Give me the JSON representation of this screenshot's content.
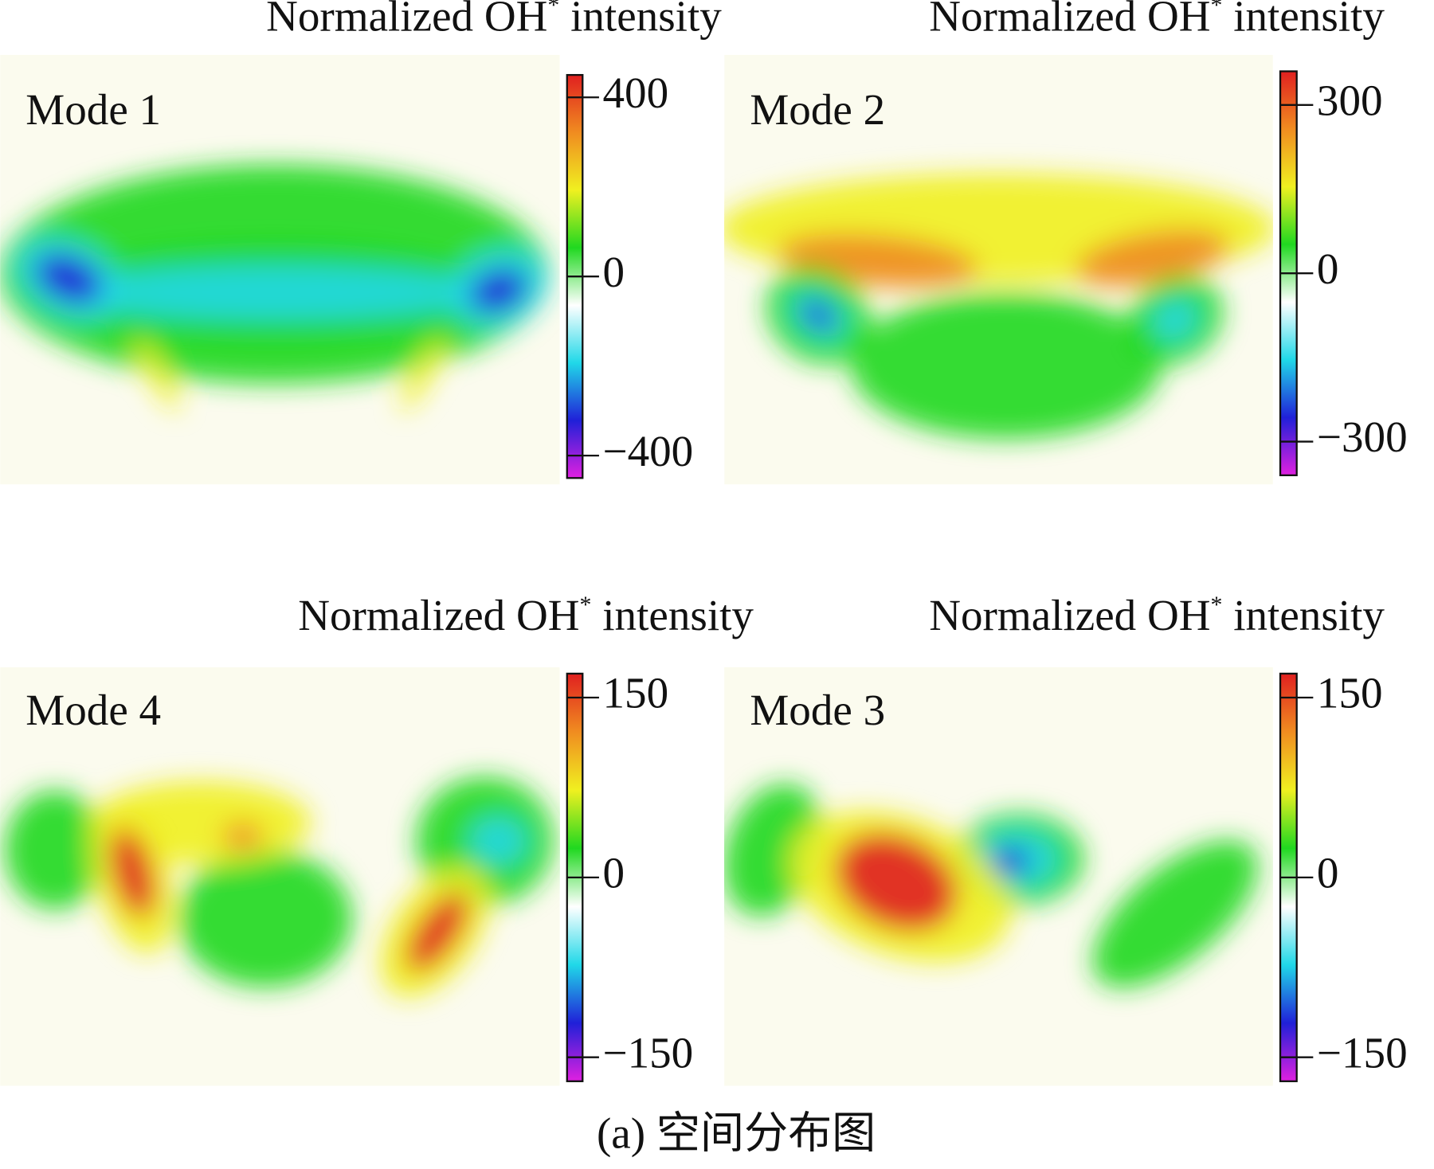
{
  "chart_data": [
    {
      "type": "heatmap",
      "title": [
        "Normalized OH",
        "*",
        "intensity"
      ],
      "label": "Mode 1",
      "clim": [
        -450,
        450
      ],
      "cticks": [
        {
          "value": -400,
          "label": "−400"
        },
        0,
        400
      ],
      "colormap": [
        "#e020e0",
        "#2020d8",
        "#20d8e8",
        "#ffffff",
        "#20d820",
        "#f0f020",
        "#f08c20",
        "#e02020"
      ]
    },
    {
      "type": "heatmap",
      "title": [
        "Normalized OH",
        "*",
        "intensity"
      ],
      "label": "Mode 2",
      "clim": [
        -360,
        360
      ],
      "cticks": [
        {
          "value": -300,
          "label": "−300"
        },
        0,
        300
      ],
      "colormap": [
        "#e020e0",
        "#2020d8",
        "#20d8e8",
        "#ffffff",
        "#20d820",
        "#f0f020",
        "#f08c20",
        "#e02020"
      ]
    },
    {
      "type": "heatmap",
      "title": [
        "Normalized OH",
        "*",
        "intensity"
      ],
      "label": "Mode 4",
      "clim": [
        -170,
        170
      ],
      "cticks": [
        {
          "value": -150,
          "label": "−150"
        },
        0,
        150
      ],
      "colormap": [
        "#e020e0",
        "#2020d8",
        "#20d8e8",
        "#ffffff",
        "#20d820",
        "#f0f020",
        "#f08c20",
        "#e02020"
      ]
    },
    {
      "type": "heatmap",
      "title": [
        "Normalized OH",
        "*",
        "intensity"
      ],
      "label": "Mode 3",
      "clim": [
        -170,
        170
      ],
      "cticks": [
        {
          "value": -150,
          "label": "−150"
        },
        0,
        150
      ],
      "colormap": [
        "#e020e0",
        "#2020d8",
        "#20d8e8",
        "#ffffff",
        "#20d820",
        "#f0f020",
        "#f08c20",
        "#e02020"
      ]
    }
  ],
  "caption": "(a) 空间分布图"
}
